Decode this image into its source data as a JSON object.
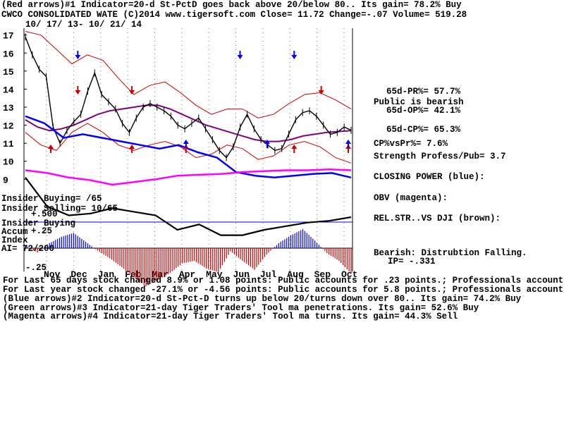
{
  "header": {
    "line1": "(Red arrows)#1 Indicator=20-d St-PctD goes back above 20/below 80.. Its gain= 78.2% Buy",
    "line2": "CWCO      CONSOLIDATED WATE       (C)2014 www.tigersoft.com    Close=  11.72  Change=-.07 Volume= 519.28",
    "date_range": "10/ 17/ 13- 10/ 21/ 14"
  },
  "right_stats": {
    "pr": "65d-PR%= 57.7%",
    "public": "Public is bearish",
    "op": "65d-OP%= 42.1%",
    "cp": "65d-CP%= 65.3%",
    "cpvspr": "CP%vsPr%=  7.6%",
    "strength": "Strength Profess/Pub= 3.7",
    "closing_power": "CLOSING POWER (blue):",
    "obv": "OBV (magenta):",
    "relstr": "REL.STR..VS DJI (brown):",
    "bearish": "Bearish: Distrubtion Falling.",
    "ip": "IP= -.331"
  },
  "left_labels": {
    "insider_buying_count": "Insider Buying= /65",
    "insider_selling": "Insider Selling= 10/65",
    "insider_buying": "Insider Buying",
    "accum": "Accum",
    "accum_top": "+.25",
    "accum_mid": "+.500",
    "index": "Index",
    "ai": "AI= 72/200",
    "accum_bottom": "-.25"
  },
  "footer": {
    "line1": "For Last 65 days stock changed  8.9% or  1.08 points:  Public accounts for  .23 points.;  Professionals account for  .85 points.",
    "line2": "For Last year stock changed -27.1% or -4.56 points:  Public accounts for  5.8 points.;  Professionals account for -10.36 points.",
    "line3": "(Blue arrows)#2 Indicator=20-d St-Pct-D turns up below 20/turns down over 80.. Its gain= 74.2% Buy",
    "line4": "(Green arrows)#3 Indicator=21-day Tiger Traders' Tool ma penetrations. Its gain= 52.6% Buy",
    "line5": "(Magenta arrows)#4 Indicator=21-day Tiger Traders' Tool ma turns. Its gain= 44.3% Sell"
  },
  "colors": {
    "price": "#000000",
    "ma": "#800080",
    "band": "#cc0000",
    "closing_power": "#0000ff",
    "obv": "#ff00ff",
    "relstr": "#000000",
    "accum_pos": "#0000ff",
    "accum_neg": "#cc0000",
    "insider_line": "#0000cc"
  },
  "chart_data": {
    "type": "line",
    "title": "CWCO CONSOLIDATED WATE",
    "x_labels": [
      "Nov",
      "Dec",
      "Jan",
      "Feb",
      "Mar",
      "Apr",
      "May",
      "Jun",
      "Jul",
      "Aug",
      "Sep",
      "Oct"
    ],
    "y_ticks": [
      17,
      16,
      15,
      14,
      13,
      12,
      11,
      10,
      9
    ],
    "ylim": [
      8.7,
      17.3
    ],
    "price": [
      16.9,
      15.9,
      15.1,
      14.7,
      11.9,
      11.0,
      11.7,
      12.2,
      12.6,
      13.9,
      14.9,
      13.7,
      13.3,
      12.9,
      12.1,
      11.6,
      12.4,
      13.0,
      13.2,
      13.0,
      12.8,
      12.5,
      12.0,
      11.8,
      12.1,
      12.4,
      11.8,
      11.2,
      10.6,
      10.2,
      10.8,
      11.9,
      12.6,
      11.8,
      11.2,
      10.9,
      10.6,
      10.7,
      11.5,
      12.3,
      12.7,
      12.8,
      12.5,
      12.0,
      11.5,
      11.6,
      11.9,
      11.72
    ],
    "ma": [
      12.3,
      11.9,
      11.7,
      11.8,
      12.0,
      12.3,
      12.6,
      12.8,
      12.9,
      13.0,
      13.1,
      13.1,
      12.9,
      12.6,
      12.3,
      12.0,
      11.8,
      11.6,
      11.4,
      11.2,
      11.1,
      11.1,
      11.2,
      11.4,
      11.5,
      11.6,
      11.65,
      11.7
    ],
    "upper_band": [
      17.2,
      17.0,
      16.2,
      15.4,
      15.9,
      15.6,
      14.6,
      13.7,
      14.2,
      14.4,
      13.8,
      13.1,
      12.6,
      12.9,
      12.9,
      12.4,
      12.6,
      13.2,
      13.7,
      13.8,
      13.4,
      12.9
    ],
    "lower_band": [
      11.6,
      10.9,
      10.6,
      11.6,
      12.1,
      11.6,
      10.9,
      10.6,
      10.9,
      11.1,
      10.8,
      10.2,
      10.4,
      10.9,
      10.7,
      10.1,
      10.3,
      10.9,
      11.1,
      10.8,
      10.2,
      9.9
    ],
    "closing_power": [
      12.5,
      12.1,
      11.3,
      11.5,
      11.3,
      11.1,
      10.9,
      10.7,
      10.9,
      10.5,
      10.2,
      9.4,
      9.2,
      9.1,
      9.2,
      9.3,
      9.35,
      9.1
    ],
    "obv": [
      9.5,
      9.35,
      9.1,
      8.95,
      8.7,
      8.85,
      9.0,
      9.2,
      9.25,
      9.3,
      9.4,
      9.45,
      9.5,
      9.5,
      9.55,
      9.5
    ],
    "rel_str": [
      9.1,
      7.5,
      7.0,
      7.1,
      7.4,
      7.2,
      7.0,
      6.2,
      6.5,
      5.9,
      5.9,
      6.2,
      6.4,
      6.6,
      6.7,
      6.9
    ],
    "accum_index": [
      0.04,
      -0.07,
      0.08,
      0.18,
      0.24,
      0.1,
      -0.04,
      -0.16,
      -0.3,
      -0.46,
      -0.6,
      -0.5,
      -0.39,
      -0.24,
      -0.2,
      -0.32,
      -0.38,
      -0.05,
      -0.2,
      -0.34,
      -0.1,
      0.08,
      0.2,
      0.3,
      0.12,
      -0.08,
      -0.2,
      -0.4
    ],
    "red_arrows_up": [
      "Nov",
      "Feb",
      "Apr",
      "Aug",
      "Oct"
    ],
    "red_arrows_down": [
      "Dec",
      "Feb",
      "Sep"
    ],
    "blue_arrows_down": [
      "Dec",
      "Jun",
      "Aug"
    ],
    "blue_arrows_up": [
      "Apr",
      "Jul",
      "Oct"
    ]
  }
}
